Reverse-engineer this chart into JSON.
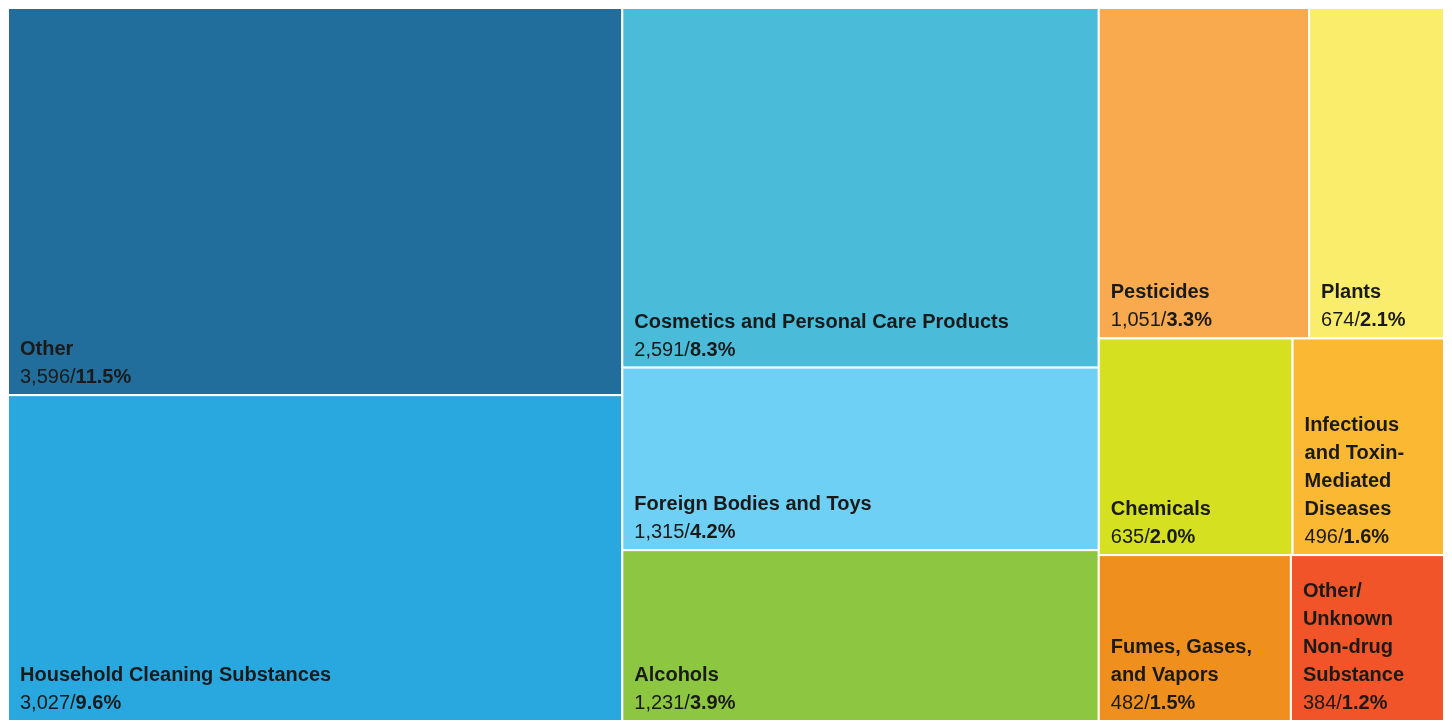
{
  "chart_data": {
    "type": "other",
    "categories": [
      "Other",
      "Household Cleaning Substances",
      "Cosmetics and Personal Care Products",
      "Foreign Bodies and Toys",
      "Alcohols",
      "Pesticides",
      "Plants",
      "Chemicals",
      "Infectious and Toxin-Mediated Diseases",
      "Fumes, Gases, and Vapors",
      "Other/ Unknown Non-drug Substance"
    ],
    "values": [
      3596,
      3027,
      2591,
      1315,
      1231,
      1051,
      674,
      635,
      496,
      482,
      384
    ],
    "value_labels": [
      "3,596/11.5%",
      "3,027/9.6%",
      "2,591/8.3%",
      "1,315/4.2%",
      "1,231/3.9%",
      "1,051/3.3%",
      "674/2.1%",
      "635/2.0%",
      "496/1.6%",
      "482/1.5%",
      "384/1.2%"
    ],
    "colors": [
      "#216d9c",
      "#29a8e0",
      "#4abcd9",
      "#6ed0f5",
      "#8dc641",
      "#f9a94e",
      "#f9ed6b",
      "#d5e021",
      "#fbb832",
      "#ee8f1e",
      "#f05428"
    ]
  }
}
